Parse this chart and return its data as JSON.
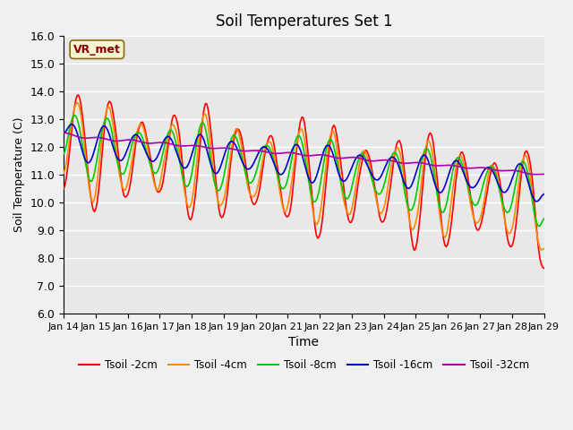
{
  "title": "Soil Temperatures Set 1",
  "xlabel": "Time",
  "ylabel": "Soil Temperature (C)",
  "ylim": [
    6.0,
    16.0
  ],
  "yticks": [
    6.0,
    7.0,
    8.0,
    9.0,
    10.0,
    11.0,
    12.0,
    13.0,
    14.0,
    15.0,
    16.0
  ],
  "xtick_labels": [
    "Jan 14",
    "Jan 15",
    "Jan 16",
    "Jan 17",
    "Jan 18",
    "Jan 19",
    "Jan 20",
    "Jan 21",
    "Jan 22",
    "Jan 23",
    "Jan 24",
    "Jan 25",
    "Jan 26",
    "Jan 27",
    "Jan 28",
    "Jan 29"
  ],
  "colors": {
    "Tsoil -2cm": "#ff0000",
    "Tsoil -4cm": "#ff8800",
    "Tsoil -8cm": "#00cc00",
    "Tsoil -16cm": "#0000cc",
    "Tsoil -32cm": "#aa00aa"
  },
  "annotation_text": "VR_met",
  "annotation_color": "#8b0000",
  "annotation_bg": "#f5f5d0",
  "plot_bg": "#e8e8e8",
  "grid_color": "#ffffff",
  "linewidth": 1.2,
  "figsize": [
    6.4,
    4.8
  ],
  "dpi": 100
}
